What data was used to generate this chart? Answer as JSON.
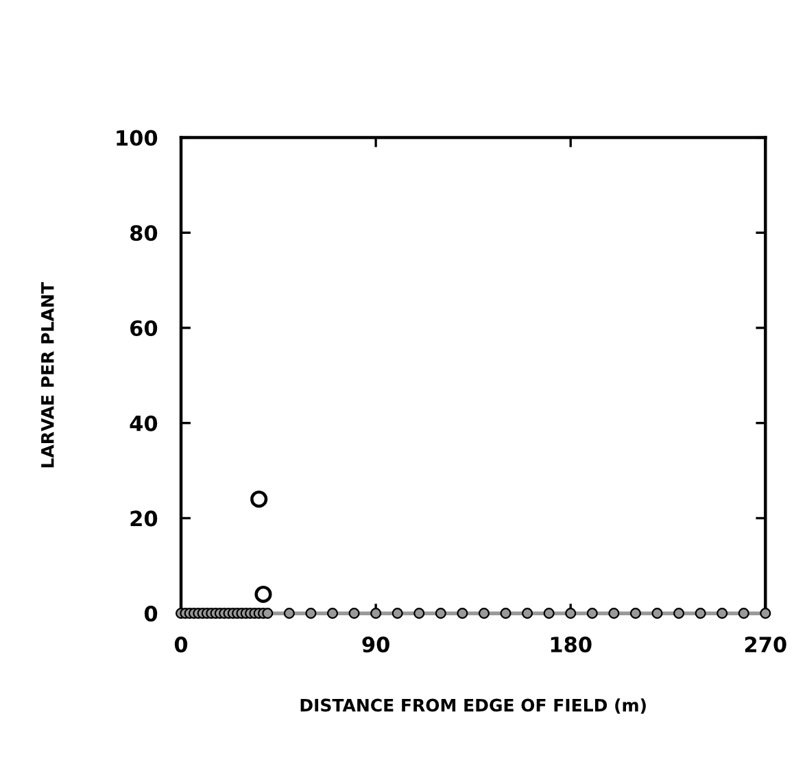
{
  "chart_data": {
    "type": "line",
    "xlabel": "DISTANCE FROM EDGE OF FIELD (m)",
    "ylabel": "LARVAE PER PLANT",
    "xlim": [
      0,
      270
    ],
    "xticks": [
      0,
      90,
      180,
      270
    ],
    "ylim": [
      0,
      100
    ],
    "yticks": [
      0,
      20,
      40,
      60,
      80,
      100
    ],
    "grid": false,
    "marker": "circle",
    "line_style": "solid",
    "series": [
      {
        "color": "#999999",
        "x": [
          0,
          2,
          4,
          6,
          8,
          10,
          12,
          14,
          16,
          18,
          20,
          22,
          24,
          26,
          28,
          30,
          32,
          34,
          36,
          38,
          40,
          50,
          60,
          70,
          80,
          90,
          100,
          110,
          120,
          130,
          140,
          150,
          160,
          170,
          180,
          190,
          200,
          210,
          220,
          230,
          240,
          250,
          260,
          270
        ],
        "values": [
          0,
          0,
          0,
          0,
          0,
          0,
          0,
          0,
          0,
          0,
          0,
          0,
          0,
          0,
          0,
          0,
          0,
          0,
          0,
          0,
          0,
          0,
          0,
          0,
          0,
          0,
          0,
          0,
          0,
          0,
          0,
          0,
          0,
          0,
          0,
          0,
          0,
          0,
          0,
          0,
          0,
          0,
          0,
          0
        ]
      },
      {
        "type": "scatter",
        "color": "#ffffff",
        "x": [
          36,
          38
        ],
        "values": [
          24,
          4
        ]
      }
    ]
  }
}
